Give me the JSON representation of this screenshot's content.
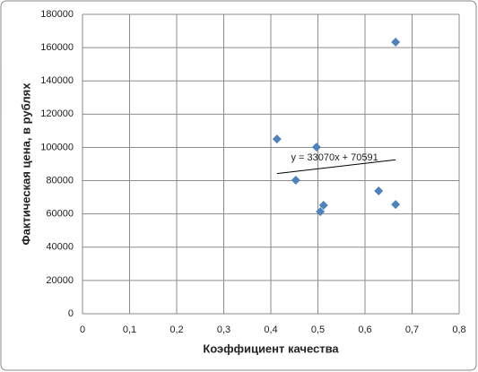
{
  "chart_data": {
    "type": "scatter",
    "x_label": "Коэффициент качества",
    "y_label": "Фактическая цена, в рублях",
    "series": [
      {
        "color": "#4f81bd",
        "x": [
          0.413,
          0.453,
          0.497,
          0.505,
          0.512,
          0.629,
          0.665,
          0.665
        ],
        "values": [
          105000,
          80300,
          100200,
          61400,
          65200,
          73800,
          163300,
          65700
        ]
      }
    ],
    "trendline": {
      "label": "y = 33070x + 70591",
      "slope": 33070,
      "intercept": 70591,
      "color": "#000000"
    },
    "xlim": [
      0,
      0.8
    ],
    "xticks": [
      {
        "value": 0,
        "label": "0"
      },
      {
        "value": 0.1,
        "label": "0,1"
      },
      {
        "value": 0.2,
        "label": "0,2"
      },
      {
        "value": 0.3,
        "label": "0,3"
      },
      {
        "value": 0.4,
        "label": "0,4"
      },
      {
        "value": 0.5,
        "label": "0,5"
      },
      {
        "value": 0.6,
        "label": "0,6"
      },
      {
        "value": 0.7,
        "label": "0,7"
      },
      {
        "value": 0.8,
        "label": "0,8"
      }
    ],
    "ylim": [
      0,
      180000
    ],
    "yticks": [
      0,
      20000,
      40000,
      60000,
      80000,
      100000,
      120000,
      140000,
      160000,
      180000
    ],
    "grid": true
  }
}
